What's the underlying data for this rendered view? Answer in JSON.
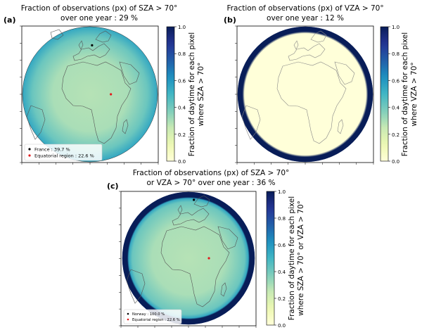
{
  "colormap": {
    "stops": [
      "#ffffd9",
      "#edf8b1",
      "#c7e9b4",
      "#7fcdbb",
      "#41b6c4",
      "#1d91c0",
      "#225ea8",
      "#253494",
      "#081d58"
    ]
  },
  "chart_data": [
    {
      "type": "heatmap",
      "panel_label": "(a)",
      "title_line1": "Fraction of observations (px) of SZA > 70°",
      "title_line2": "over one year : 29 %",
      "colorbar": {
        "label_line1": "Fraction of daytime for each pixel",
        "label_line2": "where SZA > 70°",
        "range": [
          0,
          1
        ],
        "ticks": [
          {
            "value": 0.0,
            "label": "0.0"
          },
          {
            "value": 0.2,
            "label": "0.2"
          },
          {
            "value": 0.4,
            "label": "0.4"
          },
          {
            "value": 0.6,
            "label": "0.6"
          },
          {
            "value": 0.8,
            "label": "0.8"
          },
          {
            "value": 1.0,
            "label": "1.0"
          }
        ]
      },
      "field": {
        "center_value": 0.28,
        "edge_value": 0.55,
        "rim_value": 0.55,
        "pattern": "sza"
      },
      "markers": [
        {
          "label": "France : 39.7 %",
          "value": 0.397,
          "color": "#000000",
          "lon": 2.5,
          "lat": 46.5
        },
        {
          "label": "Equatorial region : 22.6 %",
          "value": 0.226,
          "color": "#e31a1c",
          "lon": 18.0,
          "lat": 0.0
        }
      ],
      "legend_position": "lower-left"
    },
    {
      "type": "heatmap",
      "panel_label": "(b)",
      "title_line1": "Fraction of observations (px) of VZA > 70°",
      "title_line2": "over one year : 12 %",
      "colorbar": {
        "label_line1": "Fraction of daytime for each pixel",
        "label_line2": "where VZA > 70°",
        "range": [
          0,
          1
        ],
        "ticks": [
          {
            "value": 0.0,
            "label": "0.0"
          },
          {
            "value": 0.2,
            "label": "0.2"
          },
          {
            "value": 0.4,
            "label": "0.4"
          },
          {
            "value": 0.6,
            "label": "0.6"
          },
          {
            "value": 0.8,
            "label": "0.8"
          },
          {
            "value": 1.0,
            "label": "1.0"
          }
        ]
      },
      "field": {
        "center_value": 0.0,
        "edge_value": 0.0,
        "rim_value": 1.0,
        "pattern": "vza"
      },
      "markers": [],
      "legend_position": "none"
    },
    {
      "type": "heatmap",
      "panel_label": "(c)",
      "title_line1": "Fraction of observations (px) of SZA > 70°",
      "title_line2": "or VZA > 70° over one year : 36 %",
      "colorbar": {
        "label_line1": "Fraction of daytime for each pixel",
        "label_line2": "where SZA > 70° or VZA > 70°",
        "range": [
          0,
          1
        ],
        "ticks": [
          {
            "value": 0.0,
            "label": "0.0"
          },
          {
            "value": 0.2,
            "label": "0.2"
          },
          {
            "value": 0.4,
            "label": "0.4"
          },
          {
            "value": 0.6,
            "label": "0.6"
          },
          {
            "value": 0.8,
            "label": "0.8"
          },
          {
            "value": 1.0,
            "label": "1.0"
          }
        ]
      },
      "field": {
        "center_value": 0.28,
        "edge_value": 0.55,
        "rim_value": 1.0,
        "pattern": "combined"
      },
      "markers": [
        {
          "label": "Norway : 100.0 %",
          "value": 1.0,
          "color": "#000000",
          "lon": 10.0,
          "lat": 62.0
        },
        {
          "label": "Equatorial region : 22.6 %",
          "value": 0.226,
          "color": "#e31a1c",
          "lon": 18.0,
          "lat": 0.0
        }
      ],
      "legend_position": "lower-left"
    }
  ]
}
